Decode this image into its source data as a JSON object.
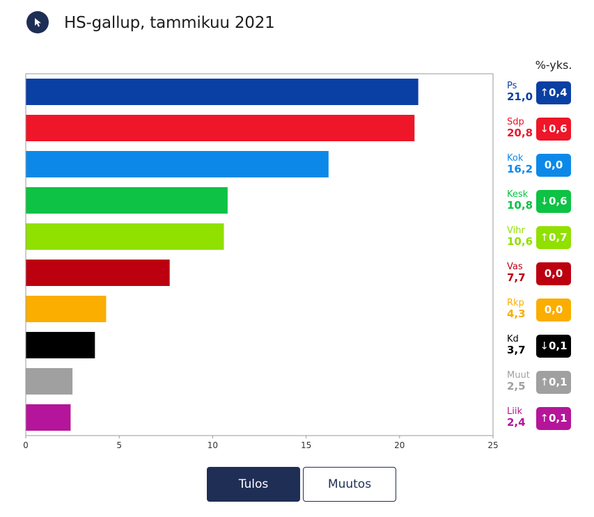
{
  "header": {
    "title": "HS-gallup, tammikuu 2021",
    "icon": "cursor-pointer-icon"
  },
  "legend": {
    "change_header": "%-yks."
  },
  "buttons": {
    "tulos_label": "Tulos",
    "muutos_label": "Muutos"
  },
  "chart_data": {
    "type": "bar",
    "orientation": "horizontal",
    "title": "HS-gallup, tammikuu 2021",
    "xlim": [
      0,
      25
    ],
    "xticks": [
      "0",
      "5",
      "10",
      "15",
      "20",
      "25"
    ],
    "xtick_values": [
      0,
      5,
      10,
      15,
      20,
      25
    ],
    "grid": false,
    "series": [
      {
        "name": "Ps",
        "value": 21.0,
        "value_label": "21,0",
        "change_label": "0,4",
        "direction": "up",
        "color": "#0a3fa3"
      },
      {
        "name": "Sdp",
        "value": 20.8,
        "value_label": "20,8",
        "change_label": "0,6",
        "direction": "down",
        "color": "#ee1628"
      },
      {
        "name": "Kok",
        "value": 16.2,
        "value_label": "16,2",
        "change_label": "0,0",
        "direction": "none",
        "color": "#0c89e8"
      },
      {
        "name": "Kesk",
        "value": 10.8,
        "value_label": "10,8",
        "change_label": "0,6",
        "direction": "down",
        "color": "#0dc244"
      },
      {
        "name": "Vihr",
        "value": 10.6,
        "value_label": "10,6",
        "change_label": "0,7",
        "direction": "up",
        "color": "#90e000"
      },
      {
        "name": "Vas",
        "value": 7.7,
        "value_label": "7,7",
        "change_label": "0,0",
        "direction": "none",
        "color": "#bc0010"
      },
      {
        "name": "Rkp",
        "value": 4.3,
        "value_label": "4,3",
        "change_label": "0,0",
        "direction": "none",
        "color": "#fbad00"
      },
      {
        "name": "Kd",
        "value": 3.7,
        "value_label": "3,7",
        "change_label": "0,1",
        "direction": "down",
        "color": "#000000"
      },
      {
        "name": "Muut",
        "value": 2.5,
        "value_label": "2,5",
        "change_label": "0,1",
        "direction": "up",
        "color": "#a0a0a0"
      },
      {
        "name": "Liik",
        "value": 2.4,
        "value_label": "2,4",
        "change_label": "0,1",
        "direction": "up",
        "color": "#b5159a"
      }
    ]
  }
}
